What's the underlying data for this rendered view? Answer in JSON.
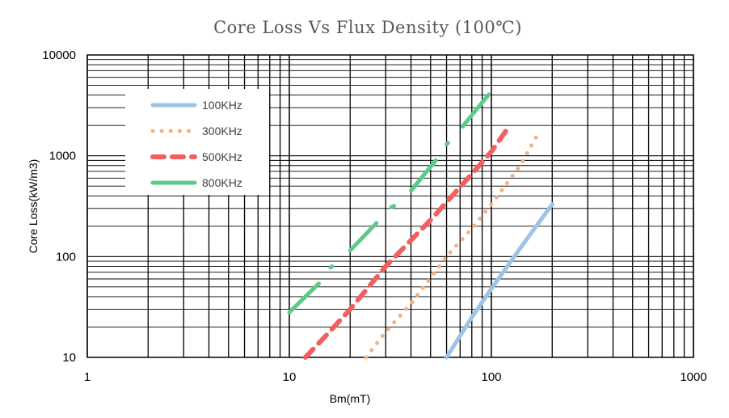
{
  "chart_data": {
    "type": "line",
    "title": "Core Loss Vs Flux Density (100℃)",
    "xlabel": "Bm(mT)",
    "ylabel": "Core Loss(kW/m3)",
    "x_scale": "log",
    "y_scale": "log",
    "xlim": [
      1,
      1000
    ],
    "ylim": [
      10,
      10000
    ],
    "x_ticks": [
      "1",
      "10",
      "100",
      "1000"
    ],
    "y_ticks": [
      "10",
      "100",
      "1000",
      "10000"
    ],
    "grid": true,
    "legend_position": "top-left",
    "series": [
      {
        "name": "100KHz",
        "style": "solid",
        "color": "#9DC3E6",
        "points": [
          [
            60,
            10
          ],
          [
            80,
            25
          ],
          [
            100,
            48
          ],
          [
            150,
            150
          ],
          [
            200,
            330
          ]
        ]
      },
      {
        "name": "300KHz",
        "style": "dotted",
        "color": "#F4B183",
        "points": [
          [
            24,
            10
          ],
          [
            30,
            18
          ],
          [
            40,
            34
          ],
          [
            60,
            100
          ],
          [
            80,
            190
          ],
          [
            100,
            330
          ],
          [
            140,
            820
          ],
          [
            170,
            1650
          ]
        ]
      },
      {
        "name": "500KHz",
        "style": "dashed",
        "color": "#F06060",
        "points": [
          [
            12,
            10
          ],
          [
            15,
            16
          ],
          [
            20,
            30
          ],
          [
            30,
            80
          ],
          [
            50,
            230
          ],
          [
            80,
            660
          ],
          [
            100,
            1100
          ],
          [
            120,
            1850
          ]
        ]
      },
      {
        "name": "800KHz",
        "style": "solid-segmented",
        "color": "#5CCB8A",
        "segments": [
          [
            [
              10,
              28
            ],
            [
              14,
              54
            ]
          ],
          [
            [
              16,
              78
            ],
            [
              16.3,
              80
            ]
          ],
          [
            [
              20,
              115
            ],
            [
              27,
              215
            ]
          ],
          [
            [
              32,
              310
            ],
            [
              33,
              318
            ]
          ],
          [
            [
              40,
              450
            ],
            [
              53,
              900
            ]
          ],
          [
            [
              60,
              1300
            ],
            [
              61,
              1340
            ]
          ],
          [
            [
              72,
              1950
            ],
            [
              97,
              4050
            ]
          ]
        ]
      }
    ]
  }
}
